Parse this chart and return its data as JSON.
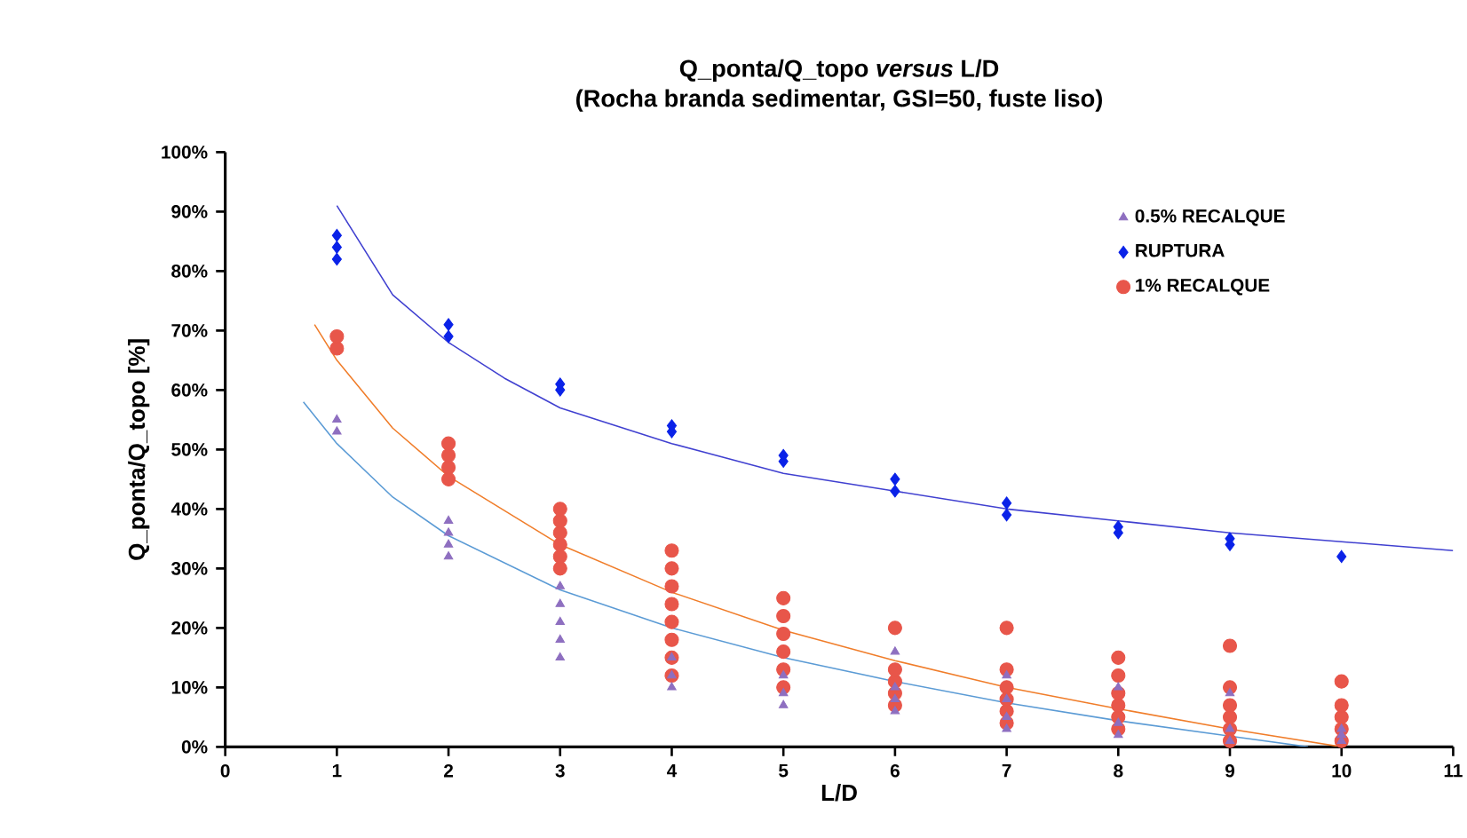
{
  "chart_data": {
    "type": "scatter",
    "title": "Q_ponta/Q_topo *versus* L/D",
    "subtitle": "(Rocha branda sedimentar, GSI=50, fuste liso)",
    "xlabel": "L/D",
    "ylabel": "Q_ponta/Q_topo [%]",
    "xlim": [
      0,
      11
    ],
    "xticks": [
      0,
      1,
      2,
      3,
      4,
      5,
      6,
      7,
      8,
      9,
      10,
      11
    ],
    "ylim": [
      0,
      100
    ],
    "yticks": [
      {
        "value": 0,
        "label": "0%"
      },
      {
        "value": 10,
        "label": "10%"
      },
      {
        "value": 20,
        "label": "20%"
      },
      {
        "value": 30,
        "label": "30%"
      },
      {
        "value": 40,
        "label": "40%"
      },
      {
        "value": 50,
        "label": "50%"
      },
      {
        "value": 60,
        "label": "60%"
      },
      {
        "value": 70,
        "label": "70%"
      },
      {
        "value": 80,
        "label": "80%"
      },
      {
        "value": 90,
        "label": "90%"
      },
      {
        "value": 100,
        "label": "100%"
      }
    ],
    "grid": false,
    "legend": "top right",
    "series": [
      {
        "name": "0.5% RECALQUE",
        "color": "#8e6fc0",
        "marker": "triangle",
        "x": [
          1,
          1,
          2,
          2,
          2,
          2,
          3,
          3,
          3,
          3,
          3,
          4,
          4,
          4,
          5,
          5,
          5,
          6,
          6,
          6,
          6,
          7,
          7,
          7,
          7,
          8,
          8,
          8,
          9,
          9,
          9,
          10,
          10,
          10
        ],
        "values": [
          53,
          55,
          32,
          34,
          36,
          38,
          15,
          18,
          21,
          24,
          27,
          10,
          12,
          15,
          7,
          9,
          12,
          6,
          8,
          10,
          16,
          3,
          5,
          8,
          12,
          2,
          4,
          10,
          1,
          3,
          9,
          1,
          2,
          3
        ]
      },
      {
        "name": "RUPTURA",
        "color": "#0a22e8",
        "marker": "diamond",
        "x": [
          1,
          1,
          1,
          2,
          2,
          3,
          3,
          4,
          4,
          5,
          5,
          6,
          6,
          7,
          7,
          8,
          8,
          9,
          9,
          10
        ],
        "values": [
          82,
          84,
          86,
          69,
          71,
          60,
          61,
          53,
          54,
          48,
          49,
          43,
          45,
          39,
          41,
          36,
          37,
          34,
          35,
          32
        ]
      },
      {
        "name": "1% RECALQUE",
        "color": "#e8564a",
        "marker": "circle",
        "x": [
          1,
          1,
          2,
          2,
          2,
          2,
          3,
          3,
          3,
          3,
          3,
          3,
          4,
          4,
          4,
          4,
          4,
          4,
          4,
          4,
          5,
          5,
          5,
          5,
          5,
          5,
          6,
          6,
          6,
          6,
          6,
          7,
          7,
          7,
          7,
          7,
          7,
          8,
          8,
          8,
          8,
          8,
          8,
          9,
          9,
          9,
          9,
          9,
          9,
          10,
          10,
          10,
          10,
          10
        ],
        "values": [
          67,
          69,
          45,
          47,
          49,
          51,
          30,
          32,
          34,
          36,
          38,
          40,
          12,
          15,
          18,
          21,
          24,
          27,
          30,
          33,
          10,
          13,
          16,
          19,
          22,
          25,
          7,
          9,
          11,
          13,
          20,
          4,
          6,
          8,
          10,
          13,
          20,
          3,
          5,
          7,
          9,
          12,
          15,
          1,
          3,
          5,
          7,
          10,
          17,
          1,
          3,
          5,
          7,
          11
        ]
      },
      {
        "type": "line",
        "color": "#4040d0",
        "marker": "none",
        "x": [
          1,
          1.5,
          2,
          2.5,
          3,
          4,
          5,
          6,
          7,
          8,
          9,
          10,
          11
        ],
        "values": [
          91,
          76,
          68,
          62,
          57,
          51,
          46,
          43,
          40,
          38,
          36,
          34.5,
          33
        ]
      },
      {
        "type": "line",
        "color": "#f07d2a",
        "marker": "none",
        "x": [
          0.8,
          1,
          1.5,
          2,
          3,
          4,
          5,
          6,
          7,
          8,
          9,
          10
        ],
        "values": [
          71,
          65,
          53.6,
          45.5,
          34,
          26,
          19.6,
          14.5,
          10,
          6.4,
          3,
          0
        ]
      },
      {
        "type": "line",
        "color": "#5b9bd5",
        "marker": "none",
        "x": [
          0.7,
          1,
          1.5,
          2,
          3,
          4,
          5,
          6,
          7,
          8,
          9,
          9.7
        ],
        "values": [
          58,
          51,
          42,
          35.5,
          26.4,
          20,
          15,
          11,
          7.4,
          4.4,
          1.8,
          0
        ]
      }
    ]
  }
}
